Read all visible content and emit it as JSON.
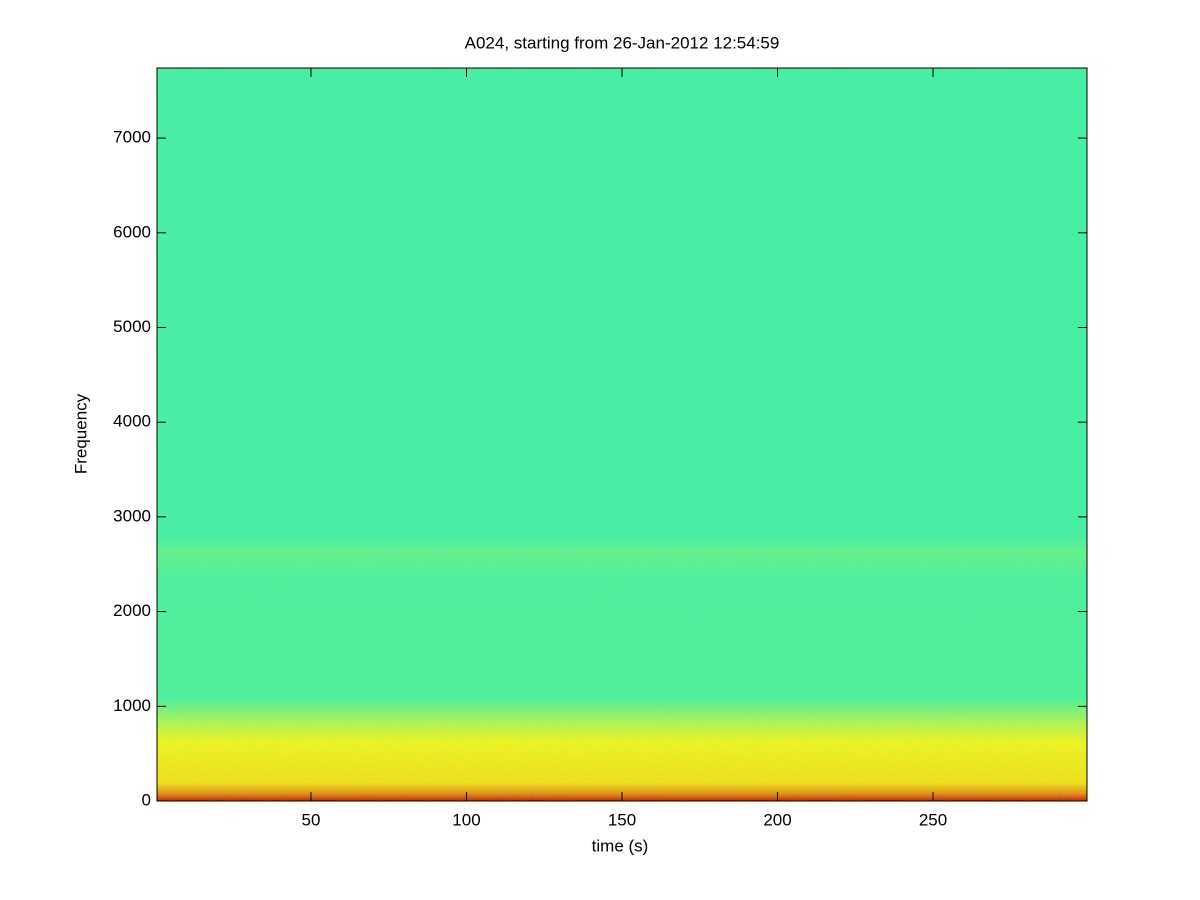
{
  "chart_data": {
    "type": "spectrogram",
    "title": "A024, starting from 26-Jan-2012 12:54:59",
    "x_label": "time (s)",
    "y_label": "Frequency",
    "xlim": [
      0.5,
      299.5
    ],
    "ylim": [
      0,
      7740
    ],
    "xticks": [
      50,
      100,
      150,
      200,
      250
    ],
    "yticks": [
      0,
      1000,
      2000,
      3000,
      4000,
      5000,
      6000,
      7000
    ]
  }
}
